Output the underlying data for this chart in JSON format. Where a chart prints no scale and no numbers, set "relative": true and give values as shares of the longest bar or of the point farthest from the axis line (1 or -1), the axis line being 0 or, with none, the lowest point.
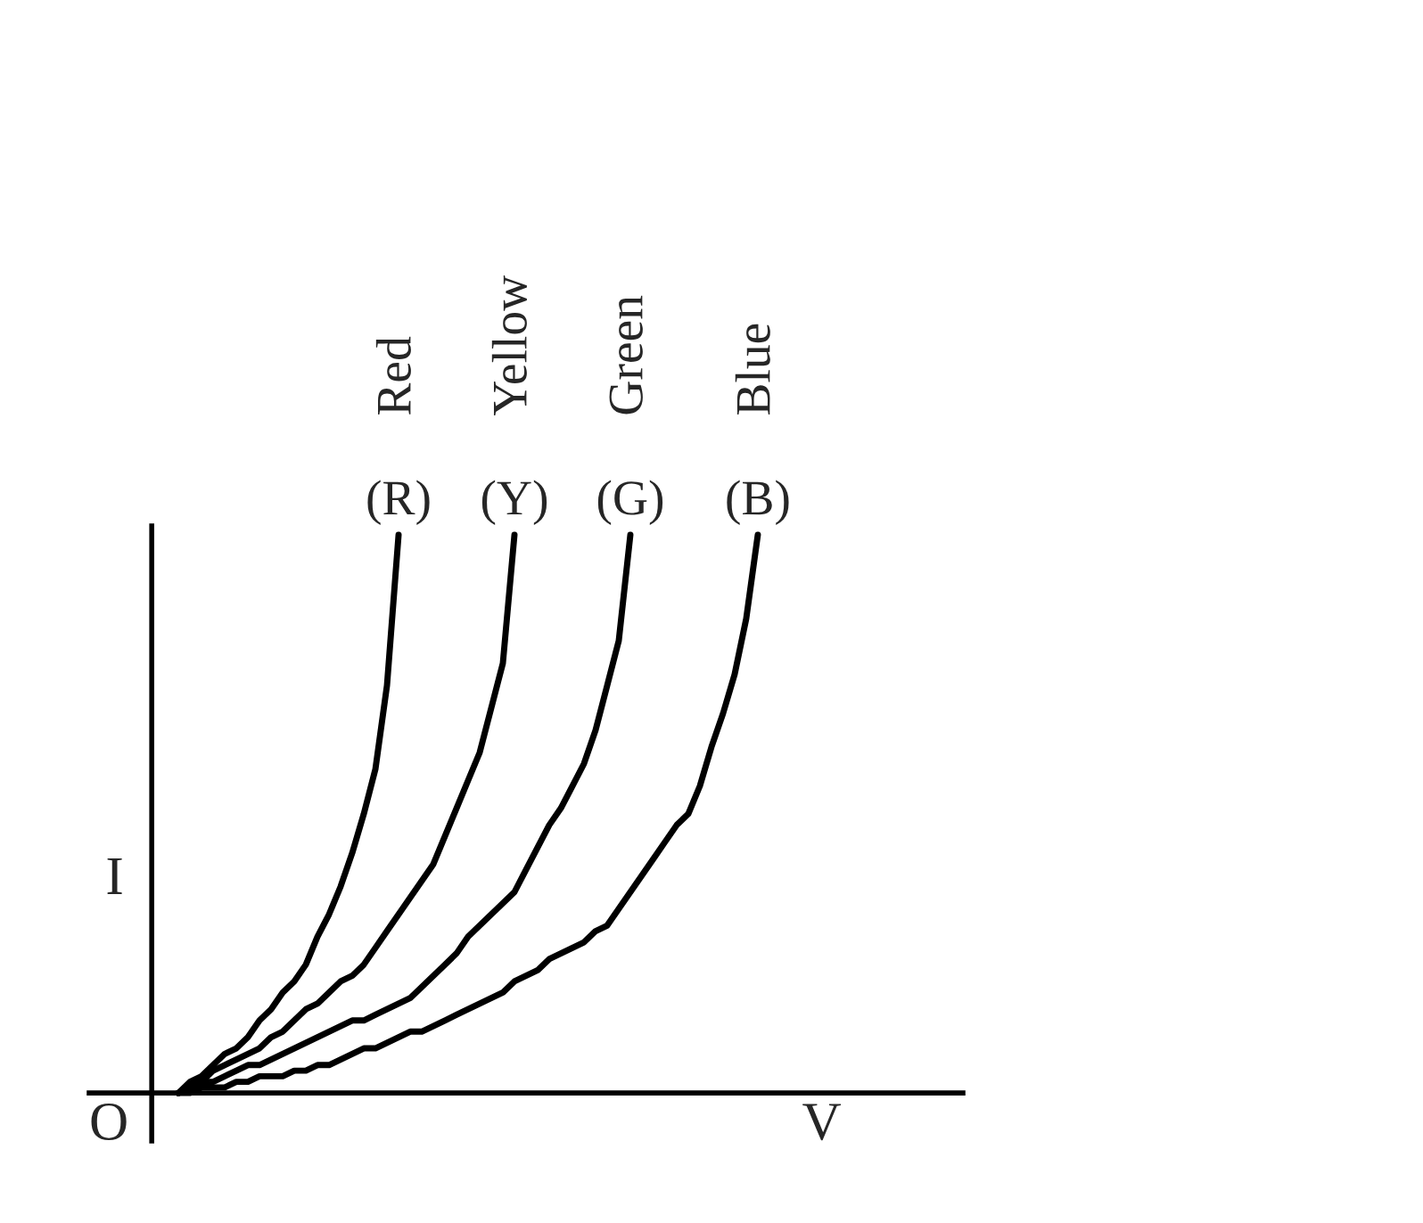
{
  "chart_data": {
    "type": "line",
    "relative": true,
    "xlabel": "V",
    "ylabel": "I",
    "marker": "none",
    "line_style": "solid",
    "annotations": [
      "O",
      "(R)",
      "(Y)",
      "(G)",
      "(B)"
    ],
    "categories": [
      null,
      null,
      null,
      null,
      null,
      null,
      null,
      null,
      null,
      null,
      null,
      null,
      null,
      null,
      null,
      null,
      null,
      null,
      null,
      null,
      null,
      null,
      null,
      null,
      null,
      null,
      null,
      null,
      null,
      null,
      null,
      null,
      null,
      null,
      null,
      null,
      null,
      null,
      null,
      null,
      null,
      null,
      null,
      null,
      null,
      null,
      null,
      null,
      null,
      null,
      null
    ],
    "series": [
      {
        "name": "Red",
        "color": "#000000",
        "values": [
          0,
          0.02,
          0.03,
          0.05,
          0.07,
          0.08,
          0.1,
          0.13,
          0.15,
          0.18,
          0.2,
          0.23,
          0.28,
          0.32,
          0.37,
          0.43,
          0.5,
          0.58,
          0.73,
          1,
          null,
          null,
          null,
          null,
          null,
          null,
          null,
          null,
          null,
          null,
          null,
          null,
          null,
          null,
          null,
          null,
          null,
          null,
          null,
          null,
          null,
          null,
          null,
          null,
          null,
          null,
          null,
          null,
          null,
          null,
          null
        ]
      },
      {
        "name": "Yellow",
        "color": "#000000",
        "values": [
          0,
          0.01,
          0.02,
          0.04,
          0.05,
          0.06,
          0.07,
          0.08,
          0.1,
          0.11,
          0.13,
          0.15,
          0.16,
          0.18,
          0.2,
          0.21,
          0.23,
          0.26,
          0.29,
          0.32,
          0.35,
          0.38,
          0.41,
          0.46,
          0.51,
          0.56,
          0.61,
          0.69,
          0.77,
          1,
          null,
          null,
          null,
          null,
          null,
          null,
          null,
          null,
          null,
          null,
          null,
          null,
          null,
          null,
          null,
          null,
          null,
          null,
          null,
          null,
          null
        ]
      },
      {
        "name": "Green",
        "color": "#000000",
        "values": [
          0,
          0.01,
          0.02,
          0.02,
          0.03,
          0.04,
          0.05,
          0.05,
          0.06,
          0.07,
          0.08,
          0.09,
          0.1,
          0.11,
          0.12,
          0.13,
          0.13,
          0.14,
          0.15,
          0.16,
          0.17,
          0.19,
          0.21,
          0.23,
          0.25,
          0.28,
          0.3,
          0.32,
          0.34,
          0.36,
          0.4,
          0.44,
          0.48,
          0.51,
          0.55,
          0.59,
          0.65,
          0.73,
          0.81,
          1,
          null,
          null,
          null,
          null,
          null,
          null,
          null,
          null,
          null,
          null,
          null
        ]
      },
      {
        "name": "Blue",
        "color": "#000000",
        "values": [
          0,
          0,
          0.01,
          0.01,
          0.01,
          0.02,
          0.02,
          0.03,
          0.03,
          0.03,
          0.04,
          0.04,
          0.05,
          0.05,
          0.06,
          0.07,
          0.08,
          0.08,
          0.09,
          0.1,
          0.11,
          0.11,
          0.12,
          0.13,
          0.14,
          0.15,
          0.16,
          0.17,
          0.18,
          0.2,
          0.21,
          0.22,
          0.24,
          0.25,
          0.26,
          0.27,
          0.29,
          0.3,
          0.33,
          0.36,
          0.39,
          0.42,
          0.45,
          0.48,
          0.5,
          0.55,
          0.62,
          0.68,
          0.75,
          0.85,
          1
        ]
      }
    ]
  }
}
